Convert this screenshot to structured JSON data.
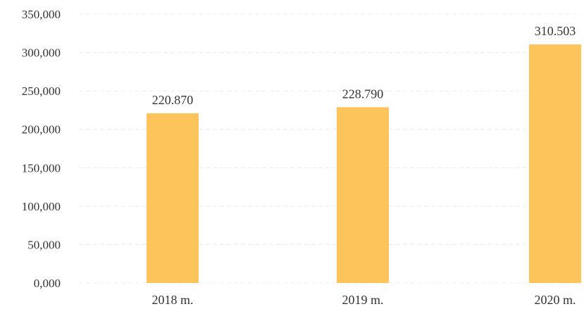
{
  "chart_data": {
    "type": "bar",
    "categories": [
      "2018 m.",
      "2019 m.",
      "2020 m."
    ],
    "values": [
      220.87,
      228.79,
      310.503
    ],
    "data_labels": [
      "220.870",
      "228.790",
      "310.503"
    ],
    "y_ticks": [
      0,
      50,
      100,
      150,
      200,
      250,
      300,
      350
    ],
    "y_tick_labels": [
      "0,000",
      "50,000",
      "100,000",
      "150,000",
      "200,000",
      "250,000",
      "300,000",
      "350,000"
    ],
    "ylim": [
      0,
      350
    ],
    "grid": true,
    "legend": "none",
    "bar_color": "#fcc45a"
  }
}
